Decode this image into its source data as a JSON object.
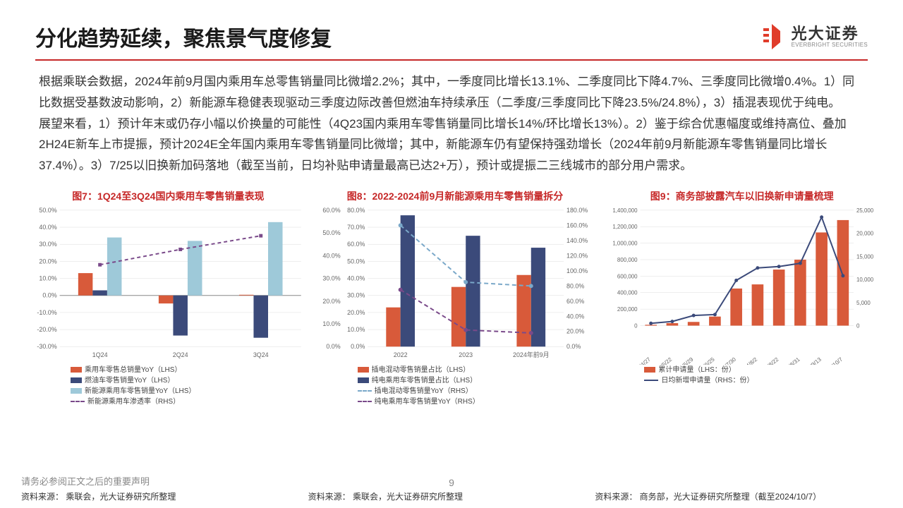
{
  "header": {
    "title": "分化趋势延续，聚焦景气度修复",
    "logo_cn": "光大证券",
    "logo_en": "EVERBRIGHT SECURITIES"
  },
  "colors": {
    "accent": "#c62828",
    "orange": "#d85a3a",
    "navy": "#3b4a7a",
    "lightblue": "#9ec9d9",
    "purple": "#7a4a8a",
    "grid": "#dddddd",
    "axis_text": "#666666"
  },
  "paragraphs": [
    "根据乘联会数据，2024年前9月国内乘用车总零售销量同比微增2.2%；其中，一季度同比增长13.1%、二季度同比下降4.7%、三季度同比微增0.4%。1）同比数据受基数波动影响，2）新能源车稳健表现驱动三季度边际改善但燃油车持续承压（二季度/三季度同比下降23.5%/24.8%），3）插混表现优于纯电。",
    "展望来看，1）预计年末或仍存小幅以价换量的可能性（4Q23国内乘用车零售销量同比增长14%/环比增长13%）。2）鉴于综合优惠幅度或维持高位、叠加 2H24E新车上市提振，预计2024E全年国内乘用车零售销量同比微增；其中，新能源车仍有望保持强劲增长（2024年前9月新能源车零售销量同比增长37.4%）。3）7/25以旧换新加码落地（截至当前，日均补贴申请量最高已达2+万），预计或提振二三线城市的部分用户需求。"
  ],
  "chart7": {
    "title": "图7：1Q24至3Q24国内乘用车零售销量表现",
    "type": "bar+line",
    "categories": [
      "1Q24",
      "2Q24",
      "3Q24"
    ],
    "y_left_min": -30,
    "y_left_max": 50,
    "y_left_step": 10,
    "y_left_fmt": "pct1",
    "series": [
      {
        "name": "乘用车零售总销量YoY（LHS）",
        "type": "bar",
        "color": "#d85a3a",
        "values": [
          13.1,
          -4.7,
          0.4
        ]
      },
      {
        "name": "燃油车零售销量YoY（LHS）",
        "type": "bar",
        "color": "#3b4a7a",
        "values": [
          3.0,
          -23.5,
          -24.8
        ]
      },
      {
        "name": "新能源乘用车零售销量YoY（LHS）",
        "type": "bar",
        "color": "#9ec9d9",
        "values": [
          34.0,
          32.0,
          43.0
        ]
      },
      {
        "name": "新能源乘用车渗透率（RHS）",
        "type": "line-dash",
        "color": "#7a4a8a",
        "values": [
          18.0,
          27.0,
          35.0
        ]
      }
    ],
    "axis_fontsize": 9
  },
  "chart8": {
    "title": "图8：2022-2024前9月新能源乘用车零售销量拆分",
    "type": "bar+line",
    "categories": [
      "2022",
      "2023",
      "2024年前9月"
    ],
    "y_left": {
      "min": 0,
      "max": 60,
      "step": 10,
      "fmt": "pct1"
    },
    "y_left2": {
      "min": 0,
      "max": 80,
      "step": 10,
      "fmt": "pct1"
    },
    "y_right": {
      "min": 0,
      "max": 180,
      "step": 20,
      "fmt": "pct1"
    },
    "series": [
      {
        "name": "插电混动零售销量占比（LHS）",
        "type": "bar",
        "color": "#d85a3a",
        "axis": "left2",
        "values": [
          23,
          35,
          42
        ]
      },
      {
        "name": "纯电乘用车零售销量占比（LHS）",
        "type": "bar",
        "color": "#3b4a7a",
        "axis": "left2",
        "values": [
          77,
          65,
          58
        ]
      },
      {
        "name": "插电混动零售销量YoY（RHS）",
        "type": "line-dash",
        "color": "#7aa8c9",
        "axis": "right",
        "values": [
          160,
          85,
          80
        ]
      },
      {
        "name": "纯电乘用车零售销量YoY（RHS）",
        "type": "line-dash",
        "color": "#7a4a8a",
        "axis": "right",
        "values": [
          75,
          22,
          18
        ]
      }
    ],
    "axis_fontsize": 9
  },
  "chart9": {
    "title": "图9：商务部披露汽车以旧换新申请量梳理",
    "type": "bar+line",
    "categories": [
      "2024/4/27",
      "2024/5/22",
      "2024/5/29",
      "2024/6/25",
      "2024/7/30",
      "2024/8/2",
      "2024/8/22",
      "2024/8/31",
      "2024/9/13",
      "2024/10/7"
    ],
    "y_left": {
      "min": 0,
      "max": 1400000,
      "step": 200000
    },
    "y_right": {
      "min": 0,
      "max": 25000,
      "step": 5000
    },
    "series": [
      {
        "name": "累计申请量（LHS：份）",
        "type": "bar",
        "color": "#d85a3a",
        "axis": "left",
        "values": [
          10000,
          30000,
          45000,
          110000,
          450000,
          500000,
          680000,
          800000,
          1130000,
          1280000
        ]
      },
      {
        "name": "日均新增申请量（RHS：份）",
        "type": "line",
        "color": "#3b4a7a",
        "axis": "right",
        "values": [
          500,
          900,
          2200,
          2400,
          9800,
          12500,
          12800,
          13500,
          23500,
          10800
        ]
      }
    ],
    "axis_fontsize": 8
  },
  "footer": {
    "disclaimer": "请务必参阅正文之后的重要声明",
    "sources": [
      "资料来源：  乘联会，光大证券研究所整理",
      "资料来源：  乘联会，光大证券研究所整理",
      "资料来源：  商务部，光大证券研究所整理（截至2024/10/7）"
    ],
    "page": "9"
  }
}
